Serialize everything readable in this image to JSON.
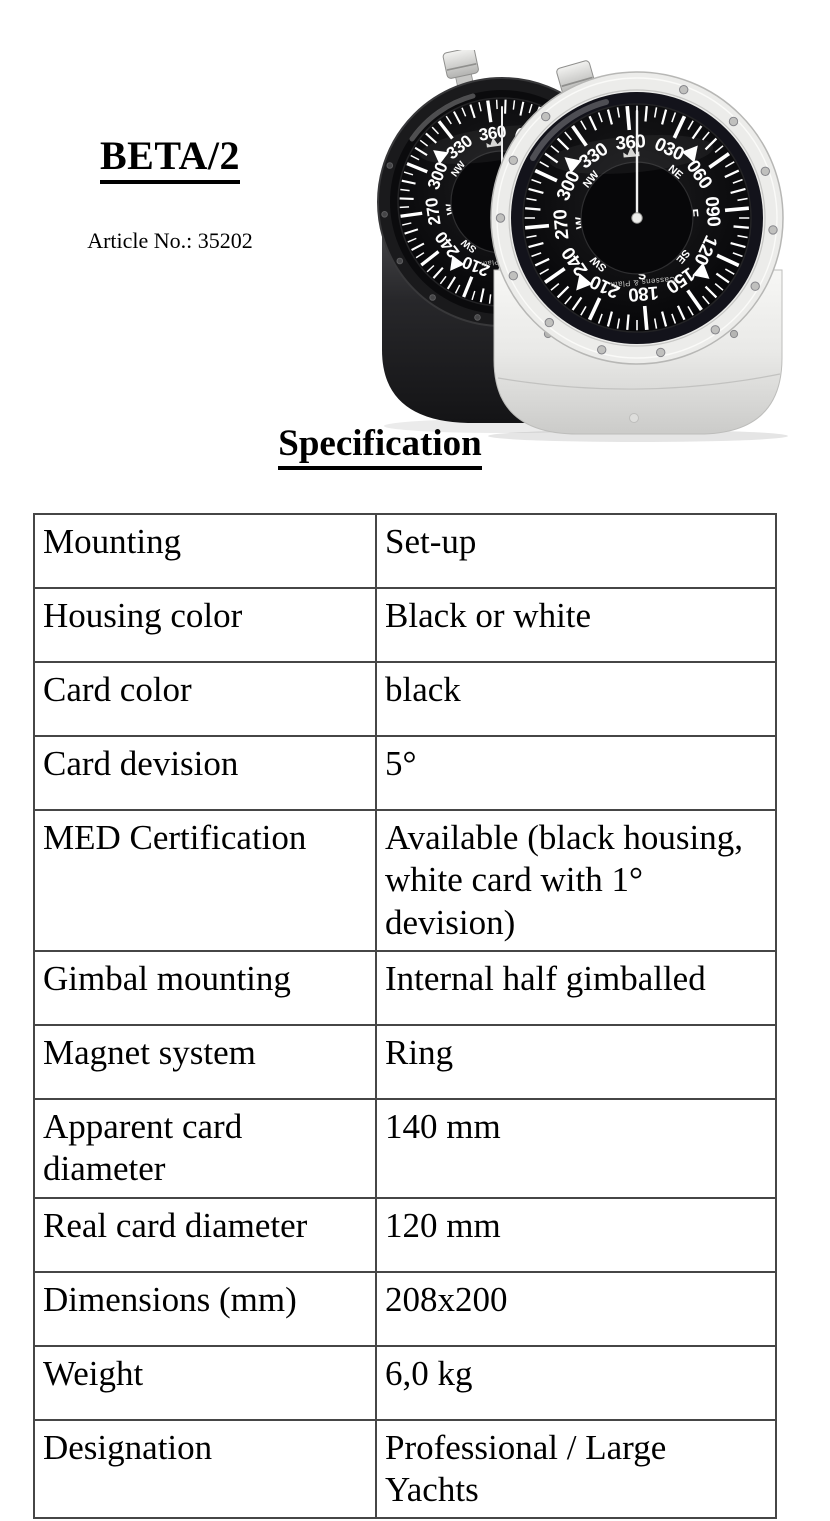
{
  "page": {
    "title": "BETA/2",
    "article_label": "Article No.: 35202",
    "section_heading": "Specification"
  },
  "product_image": {
    "dial": {
      "degree_labels": [
        "360",
        "030",
        "060",
        "090",
        "120",
        "150",
        "180",
        "210",
        "240",
        "270",
        "300",
        "330"
      ],
      "cardinal_labels": [
        "E",
        "S",
        "W"
      ],
      "intercardinal_labels": [
        "NE",
        "SE",
        "SW",
        "NW"
      ],
      "brand_text": "Cassens & Plath"
    },
    "colors": {
      "black_housing": "#232325",
      "white_housing": "#ebebe9",
      "dial_face": "#0c0c0c",
      "markings": "#ffffff"
    }
  },
  "spec_table": {
    "rows": [
      {
        "label": "Mounting",
        "value": "Set-up"
      },
      {
        "label": "Housing color",
        "value": "Black or white"
      },
      {
        "label": "Card color",
        "value": "black"
      },
      {
        "label": "Card devision",
        "value": "5°"
      },
      {
        "label": "MED Certification",
        "value": "Available (black housing, white card with 1° devision)"
      },
      {
        "label": "Gimbal mounting",
        "value": "Internal half gimballed"
      },
      {
        "label": "Magnet system",
        "value": "Ring"
      },
      {
        "label": "Apparent card diameter",
        "value": "140 mm"
      },
      {
        "label": "Real card diameter",
        "value": "120 mm"
      },
      {
        "label": "Dimensions (mm)",
        "value": "208x200"
      },
      {
        "label": "Weight",
        "value": "6,0 kg"
      },
      {
        "label": "Designation",
        "value": "Professional / Large Yachts"
      }
    ]
  }
}
